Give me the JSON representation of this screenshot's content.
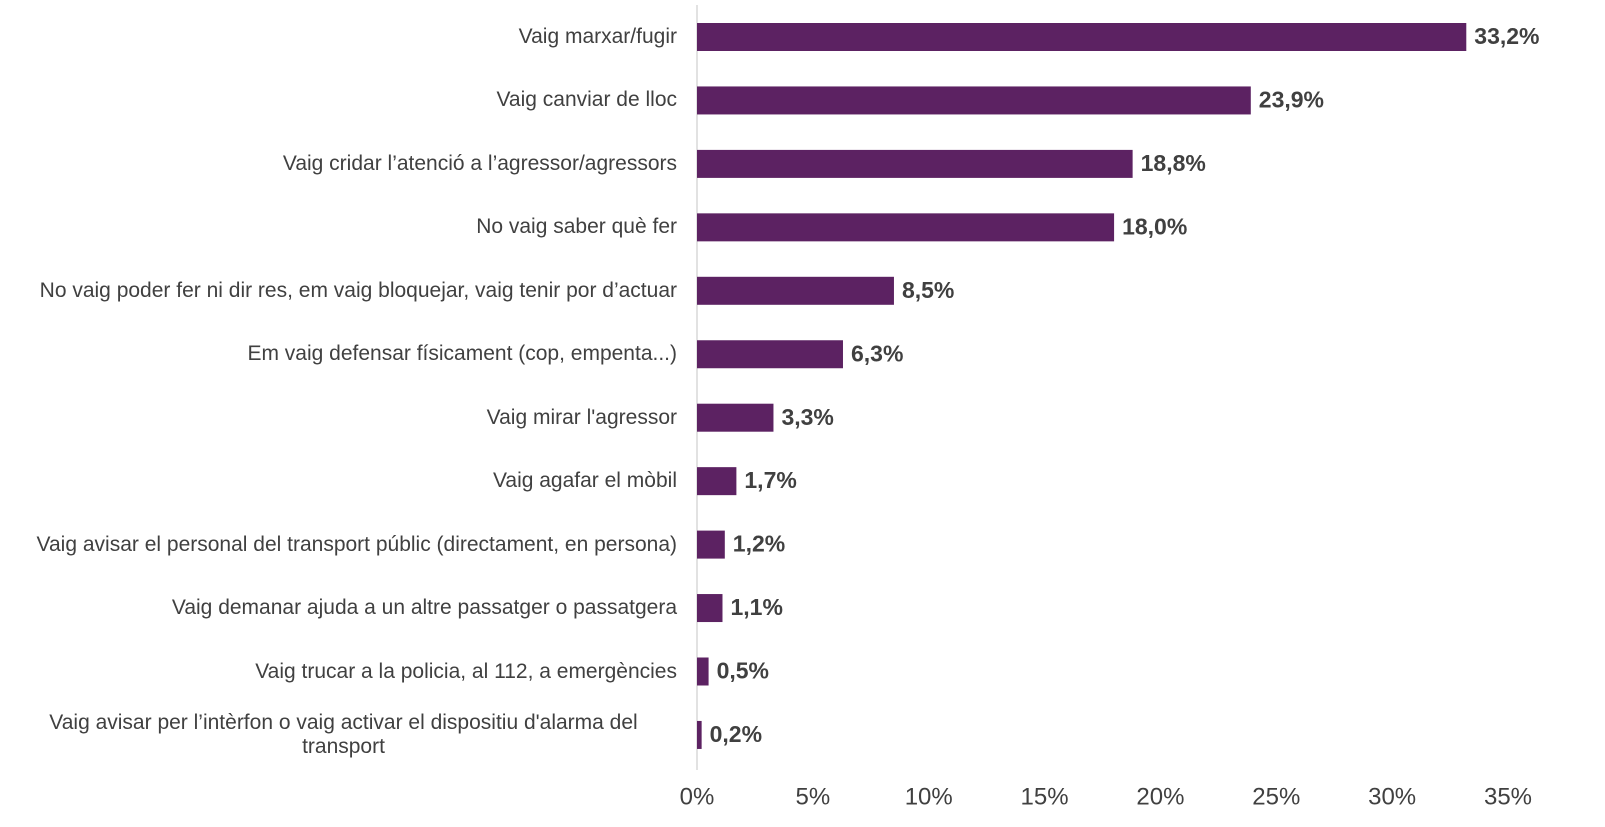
{
  "chart_data": {
    "type": "bar",
    "orientation": "horizontal",
    "categories": [
      "Vaig marxar/fugir",
      "Vaig canviar de lloc",
      "Vaig cridar l’atenció a l’agressor/agressors",
      "No vaig saber què fer",
      "No vaig poder fer ni dir res, em vaig bloquejar, vaig tenir por d’actuar",
      "Em vaig defensar físicament (cop, empenta...)",
      "Vaig mirar l'agressor",
      "Vaig agafar el mòbil",
      "Vaig avisar el personal del transport públic (directament, en persona)",
      "Vaig demanar ajuda a un altre passatger o passatgera",
      "Vaig trucar a la policia, al 112, a emergències",
      "Vaig avisar per l’intèrfon o vaig activar el dispositiu d'alarma del transport"
    ],
    "values": [
      33.2,
      23.9,
      18.8,
      18.0,
      8.5,
      6.3,
      3.3,
      1.7,
      1.2,
      1.1,
      0.5,
      0.2
    ],
    "value_labels": [
      "33,2%",
      "23,9%",
      "18,8%",
      "18,0%",
      "8,5%",
      "6,3%",
      "3,3%",
      "1,7%",
      "1,2%",
      "1,1%",
      "0,5%",
      "0,2%"
    ],
    "color": "#5c2262",
    "xlim": [
      0,
      35
    ],
    "xticks": [
      {
        "value": 0,
        "label": "0%"
      },
      {
        "value": 5,
        "label": "5%"
      },
      {
        "value": 10,
        "label": "10%"
      },
      {
        "value": 15,
        "label": "15%"
      },
      {
        "value": 20,
        "label": "20%"
      },
      {
        "value": 25,
        "label": "25%"
      },
      {
        "value": 30,
        "label": "30%"
      },
      {
        "value": 35,
        "label": "35%"
      }
    ]
  }
}
